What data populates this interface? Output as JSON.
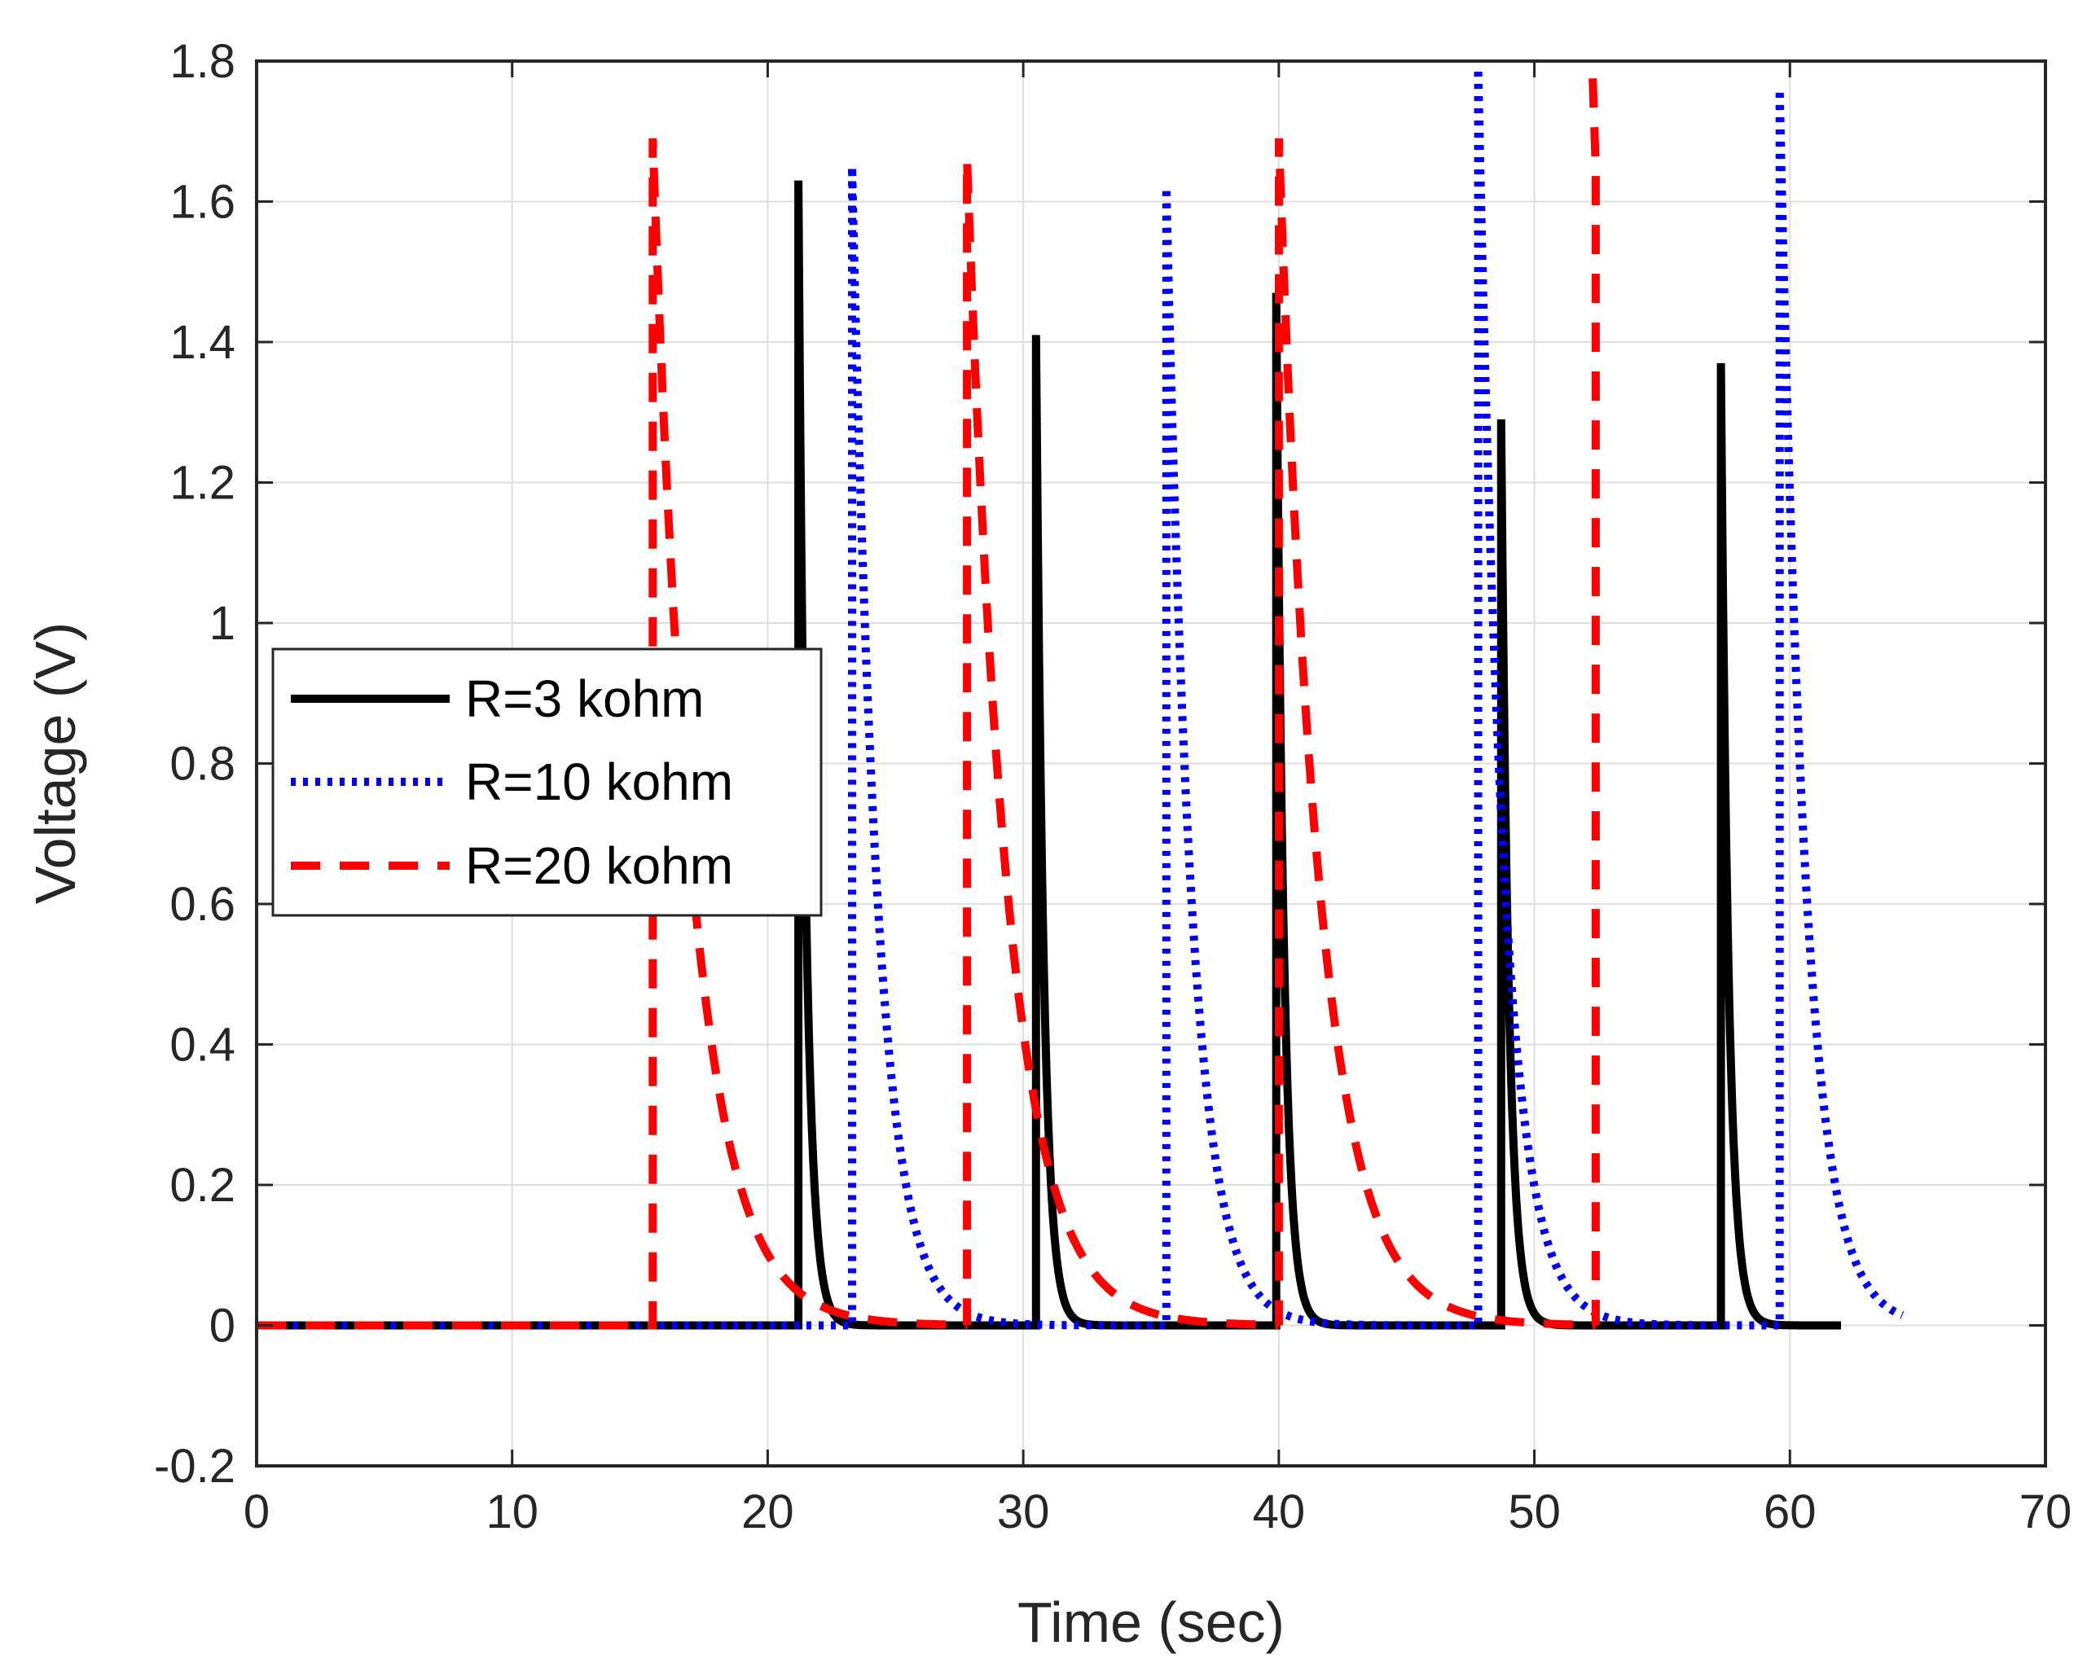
{
  "chart_data": {
    "type": "line",
    "title": "",
    "xlabel": "Time (sec)",
    "ylabel": "Voltage (V)",
    "xlim": [
      0,
      70
    ],
    "ylim": [
      -0.2,
      1.8
    ],
    "xticks": [
      "0",
      "10",
      "20",
      "30",
      "40",
      "50",
      "60",
      "70"
    ],
    "yticks": [
      "-0.2",
      "0",
      "0.2",
      "0.4",
      "0.6",
      "0.8",
      "1",
      "1.2",
      "1.4",
      "1.6",
      "1.8"
    ],
    "grid": true,
    "legend_position": "middle-left",
    "decay_shape": "exponential",
    "series": [
      {
        "name": "R=3 kohm",
        "color": "#000000",
        "style": "solid",
        "x_end": 62,
        "pulse_times": [
          21.2,
          30.5,
          39.9,
          48.7,
          57.3
        ],
        "peaks": [
          1.63,
          1.41,
          1.47,
          1.29,
          1.37
        ],
        "decay_time_constant": 0.3
      },
      {
        "name": "R=10 kohm",
        "color": "#0000ff",
        "style": "dotted",
        "x_end": 64.4,
        "pulse_times": [
          23.3,
          35.6,
          47.8,
          59.6
        ],
        "peaks": [
          1.65,
          1.62,
          1.79,
          1.76
        ],
        "decay_time_constant": 1.0
      },
      {
        "name": "R=20 kohm",
        "color": "#ff0000",
        "style": "dashed",
        "x_end": 49.5,
        "pulse_times": [
          15.5,
          27.8,
          40.0,
          52.4
        ],
        "peaks": [
          1.69,
          1.66,
          1.69,
          1.65
        ],
        "decay_time_constant": 1.6
      }
    ]
  }
}
